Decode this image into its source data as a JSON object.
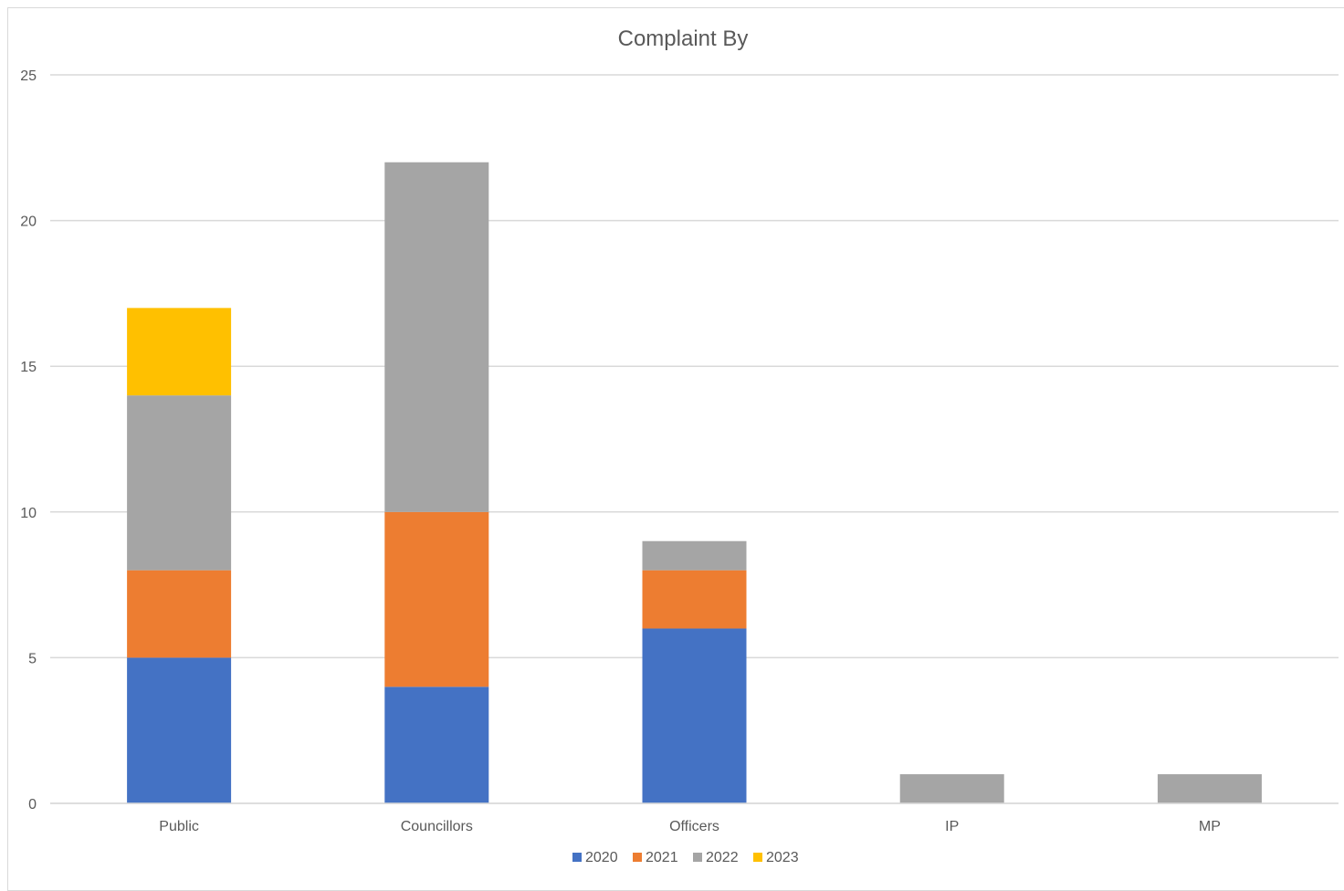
{
  "chart_data": {
    "type": "bar",
    "stacked": true,
    "title": "Complaint By",
    "categories": [
      "Public",
      "Councillors",
      "Officers",
      "IP",
      "MP"
    ],
    "series": [
      {
        "name": "2020",
        "color": "#4472c4",
        "values": [
          5,
          4,
          6,
          0,
          0
        ]
      },
      {
        "name": "2021",
        "color": "#ed7d31",
        "values": [
          3,
          6,
          2,
          0,
          0
        ]
      },
      {
        "name": "2022",
        "color": "#a5a5a5",
        "values": [
          6,
          12,
          1,
          1,
          1
        ]
      },
      {
        "name": "2023",
        "color": "#ffc000",
        "values": [
          3,
          0,
          0,
          0,
          0
        ]
      }
    ],
    "ylim": [
      0,
      25
    ],
    "yticks": [
      0,
      5,
      10,
      15,
      20,
      25
    ],
    "grid": true,
    "legend_position": "bottom",
    "gridline_color": "#d9d9d9",
    "text_color": "#595959"
  }
}
